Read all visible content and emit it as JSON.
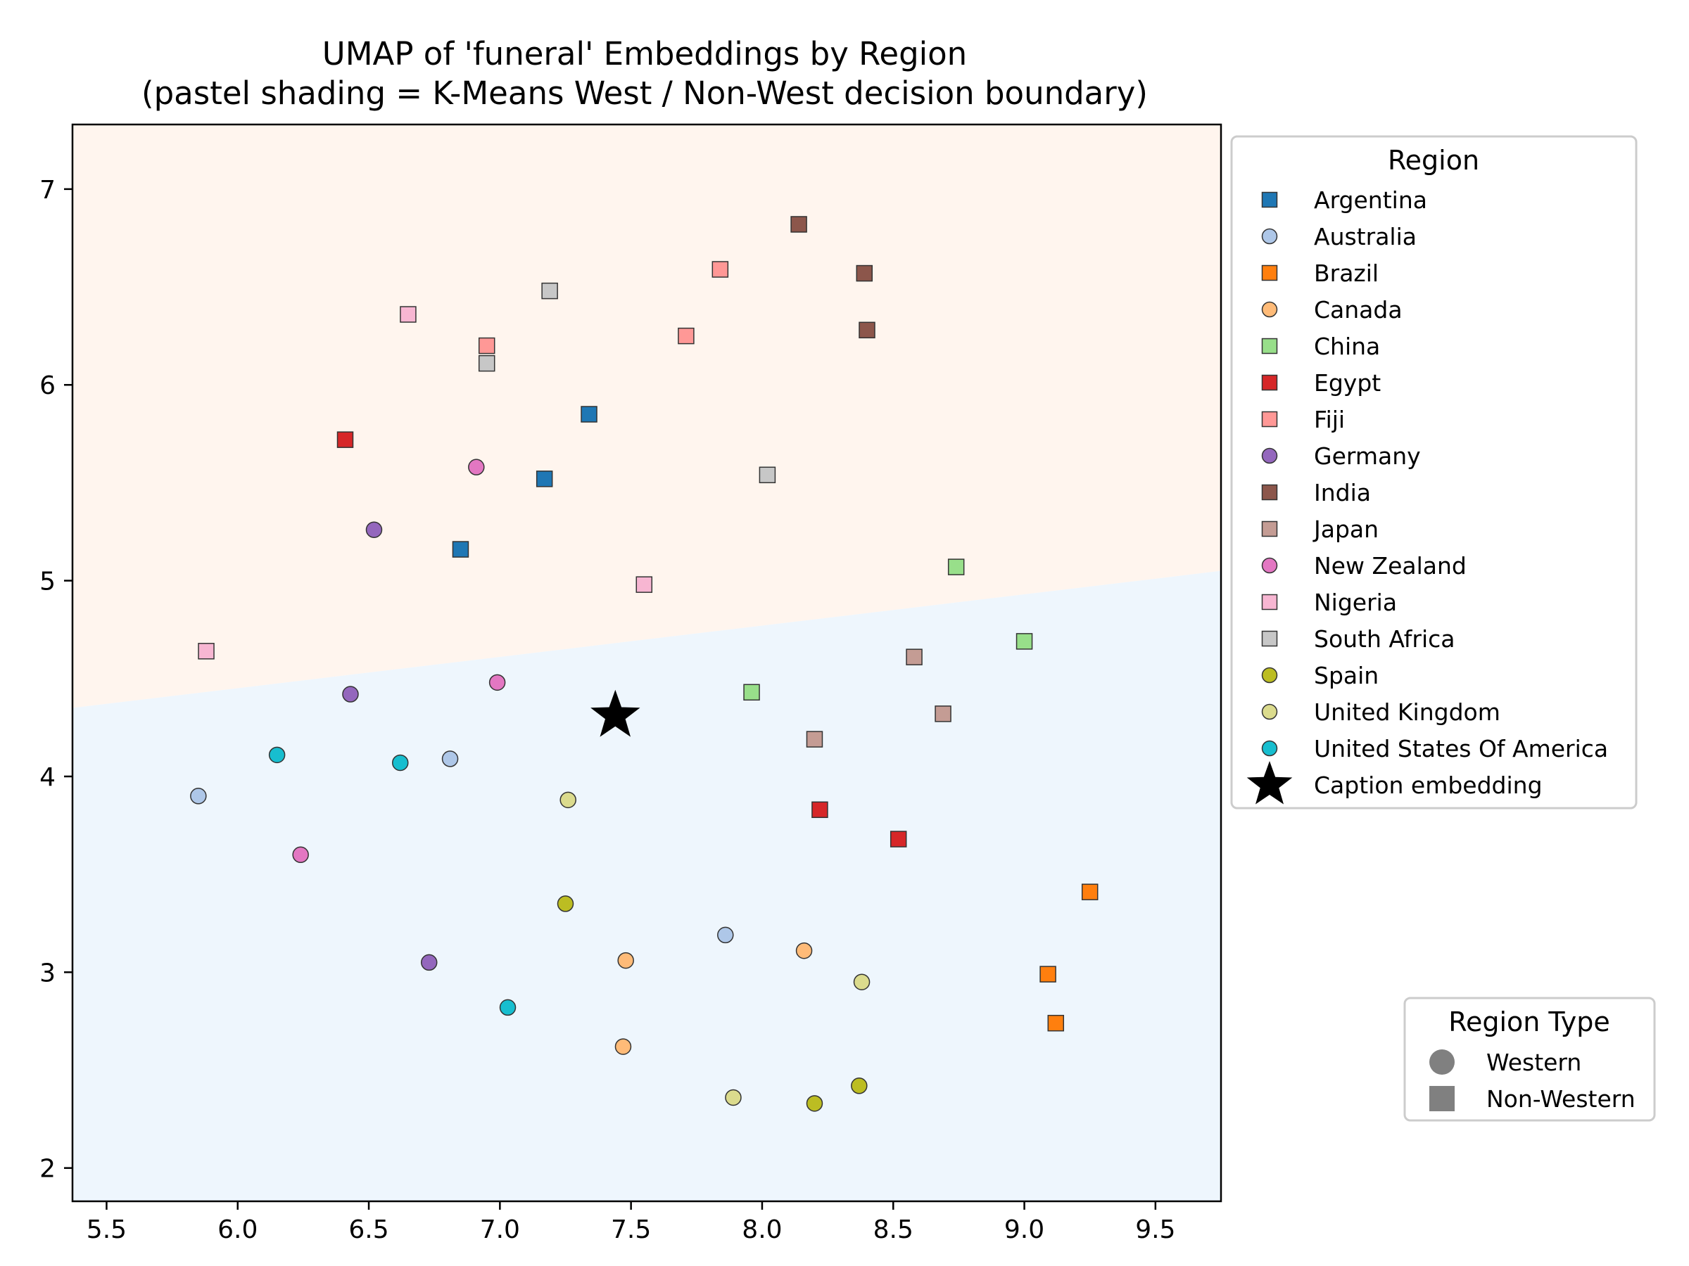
{
  "chart_data": {
    "type": "scatter",
    "title": "UMAP of 'funeral' Embeddings by Region",
    "subtitle": "(pastel shading = K-Means West / Non-West decision boundary)",
    "xlabel": "",
    "ylabel": "",
    "xlim": [
      5.37,
      9.75
    ],
    "ylim": [
      1.83,
      7.33
    ],
    "x_ticks": [
      5.5,
      6.0,
      6.5,
      7.0,
      7.5,
      8.0,
      8.5,
      9.0,
      9.5
    ],
    "x_tick_labels": [
      "5.5",
      "6.0",
      "6.5",
      "7.0",
      "7.5",
      "8.0",
      "8.5",
      "9.0",
      "9.5"
    ],
    "y_ticks": [
      2,
      3,
      4,
      5,
      6,
      7
    ],
    "y_tick_labels": [
      "2",
      "3",
      "4",
      "5",
      "6",
      "7"
    ],
    "grid": false,
    "decision_boundary": {
      "line": [
        [
          5.37,
          4.35
        ],
        [
          9.75,
          5.05
        ]
      ],
      "upper_region_color": "#fff5ee",
      "lower_region_color": "#eef6fd"
    },
    "regions": [
      {
        "name": "Argentina",
        "type": "Non-Western",
        "color": "#1f77b4"
      },
      {
        "name": "Australia",
        "type": "Western",
        "color": "#aec7e8"
      },
      {
        "name": "Brazil",
        "type": "Non-Western",
        "color": "#ff7f0e"
      },
      {
        "name": "Canada",
        "type": "Western",
        "color": "#ffbb78"
      },
      {
        "name": "China",
        "type": "Non-Western",
        "color": "#98df8a"
      },
      {
        "name": "Egypt",
        "type": "Non-Western",
        "color": "#d62728"
      },
      {
        "name": "Fiji",
        "type": "Non-Western",
        "color": "#ff9896"
      },
      {
        "name": "Germany",
        "type": "Western",
        "color": "#9467bd"
      },
      {
        "name": "India",
        "type": "Non-Western",
        "color": "#8c564b"
      },
      {
        "name": "Japan",
        "type": "Non-Western",
        "color": "#c49c94"
      },
      {
        "name": "New Zealand",
        "type": "Western",
        "color": "#e377c2"
      },
      {
        "name": "Nigeria",
        "type": "Non-Western",
        "color": "#f7b6d2"
      },
      {
        "name": "South Africa",
        "type": "Non-Western",
        "color": "#c7c7c7"
      },
      {
        "name": "Spain",
        "type": "Western",
        "color": "#bcbd22"
      },
      {
        "name": "United Kingdom",
        "type": "Western",
        "color": "#dbdb8d"
      },
      {
        "name": "United States Of America",
        "type": "Western",
        "color": "#17becf"
      }
    ],
    "points": [
      {
        "region": "Argentina",
        "x": 7.34,
        "y": 5.85
      },
      {
        "region": "Argentina",
        "x": 7.17,
        "y": 5.52
      },
      {
        "region": "Argentina",
        "x": 6.85,
        "y": 5.16
      },
      {
        "region": "Australia",
        "x": 5.85,
        "y": 3.9
      },
      {
        "region": "Australia",
        "x": 6.81,
        "y": 4.09
      },
      {
        "region": "Australia",
        "x": 7.86,
        "y": 3.19
      },
      {
        "region": "Brazil",
        "x": 9.25,
        "y": 3.41
      },
      {
        "region": "Brazil",
        "x": 9.09,
        "y": 2.99
      },
      {
        "region": "Brazil",
        "x": 9.12,
        "y": 2.74
      },
      {
        "region": "Canada",
        "x": 7.48,
        "y": 3.06
      },
      {
        "region": "Canada",
        "x": 7.47,
        "y": 2.62
      },
      {
        "region": "Canada",
        "x": 8.16,
        "y": 3.11
      },
      {
        "region": "China",
        "x": 8.74,
        "y": 5.07
      },
      {
        "region": "China",
        "x": 9.0,
        "y": 4.69
      },
      {
        "region": "China",
        "x": 7.96,
        "y": 4.43
      },
      {
        "region": "Egypt",
        "x": 6.41,
        "y": 5.72
      },
      {
        "region": "Egypt",
        "x": 8.22,
        "y": 3.83
      },
      {
        "region": "Egypt",
        "x": 8.52,
        "y": 3.68
      },
      {
        "region": "Fiji",
        "x": 7.84,
        "y": 6.59
      },
      {
        "region": "Fiji",
        "x": 7.71,
        "y": 6.25
      },
      {
        "region": "Fiji",
        "x": 6.95,
        "y": 6.2
      },
      {
        "region": "Germany",
        "x": 6.52,
        "y": 5.26
      },
      {
        "region": "Germany",
        "x": 6.43,
        "y": 4.42
      },
      {
        "region": "Germany",
        "x": 6.73,
        "y": 3.05
      },
      {
        "region": "India",
        "x": 8.14,
        "y": 6.82
      },
      {
        "region": "India",
        "x": 8.39,
        "y": 6.57
      },
      {
        "region": "India",
        "x": 8.4,
        "y": 6.28
      },
      {
        "region": "Japan",
        "x": 8.58,
        "y": 4.61
      },
      {
        "region": "Japan",
        "x": 8.69,
        "y": 4.32
      },
      {
        "region": "Japan",
        "x": 8.2,
        "y": 4.19
      },
      {
        "region": "New Zealand",
        "x": 6.91,
        "y": 5.58
      },
      {
        "region": "New Zealand",
        "x": 6.99,
        "y": 4.48
      },
      {
        "region": "New Zealand",
        "x": 6.24,
        "y": 3.6
      },
      {
        "region": "Nigeria",
        "x": 6.65,
        "y": 6.36
      },
      {
        "region": "Nigeria",
        "x": 7.55,
        "y": 4.98
      },
      {
        "region": "Nigeria",
        "x": 5.88,
        "y": 4.64
      },
      {
        "region": "South Africa",
        "x": 7.19,
        "y": 6.48
      },
      {
        "region": "South Africa",
        "x": 6.95,
        "y": 6.11
      },
      {
        "region": "South Africa",
        "x": 8.02,
        "y": 5.54
      },
      {
        "region": "Spain",
        "x": 7.25,
        "y": 3.35
      },
      {
        "region": "Spain",
        "x": 8.37,
        "y": 2.42
      },
      {
        "region": "Spain",
        "x": 8.2,
        "y": 2.33
      },
      {
        "region": "United Kingdom",
        "x": 7.26,
        "y": 3.88
      },
      {
        "region": "United Kingdom",
        "x": 8.38,
        "y": 2.95
      },
      {
        "region": "United Kingdom",
        "x": 7.89,
        "y": 2.36
      },
      {
        "region": "United States Of America",
        "x": 6.15,
        "y": 4.11
      },
      {
        "region": "United States Of America",
        "x": 6.62,
        "y": 4.07
      },
      {
        "region": "United States Of America",
        "x": 7.03,
        "y": 2.82
      }
    ],
    "caption_embedding": {
      "label": "Caption embedding",
      "x": 7.44,
      "y": 4.31,
      "color": "#000000"
    },
    "legend": {
      "title": "Region",
      "placement": "outside-right-top"
    },
    "type_legend": {
      "title": "Region Type",
      "placement": "bottom-right",
      "entries": [
        {
          "label": "Western",
          "marker": "circle"
        },
        {
          "label": "Non-Western",
          "marker": "square"
        }
      ],
      "color": "#808080"
    }
  }
}
